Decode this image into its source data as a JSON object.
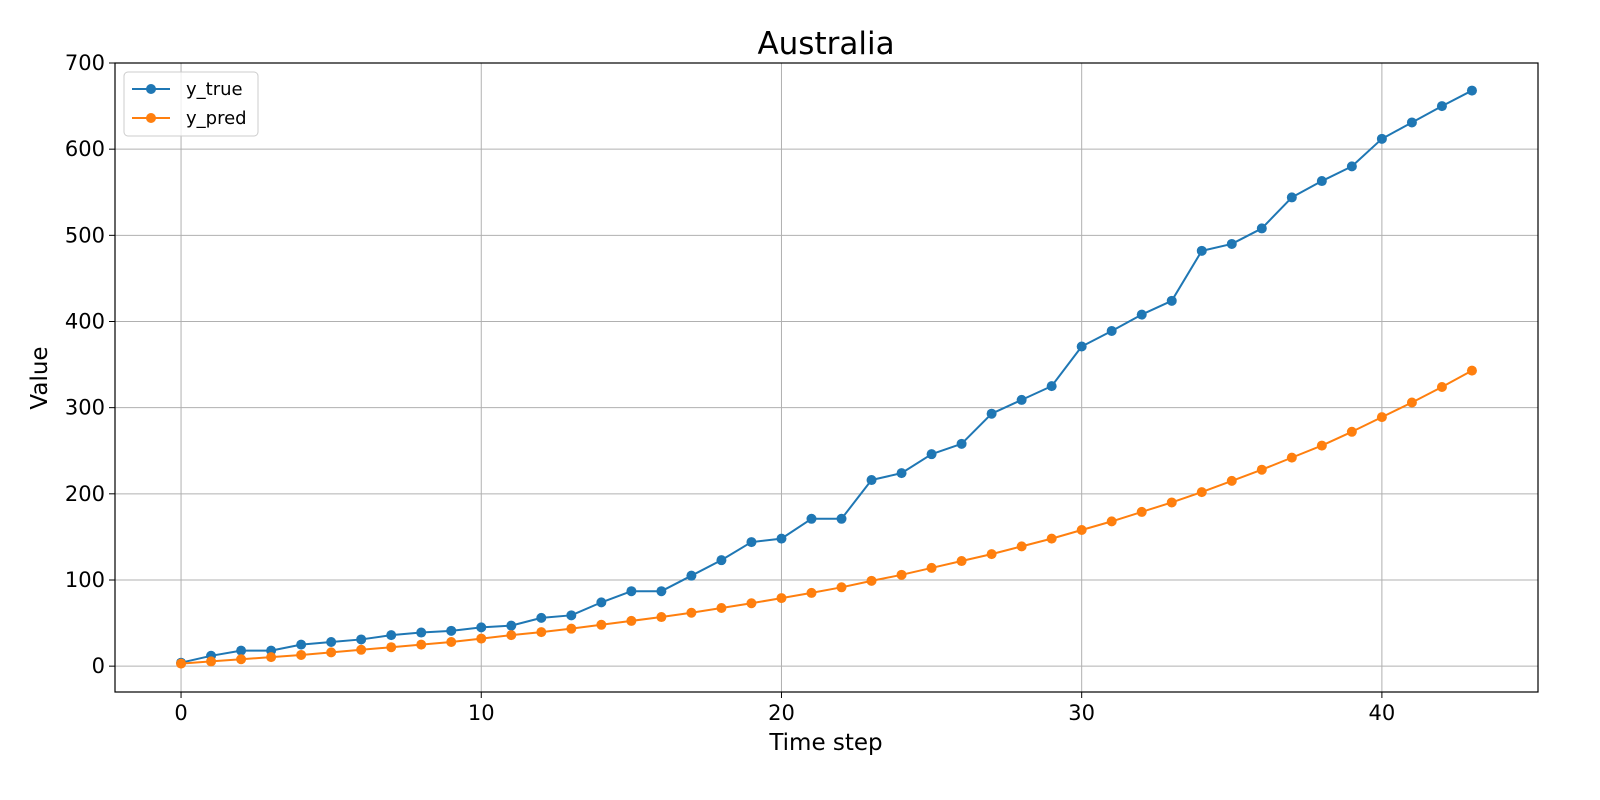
{
  "chart_data": {
    "type": "line",
    "title": "Australia",
    "xlabel": "Time step",
    "ylabel": "Value",
    "xlim": [
      -2.2,
      45.2
    ],
    "ylim": [
      -30,
      700
    ],
    "xticks": [
      0,
      10,
      20,
      30,
      40
    ],
    "yticks": [
      0,
      100,
      200,
      300,
      400,
      500,
      600,
      700
    ],
    "grid": true,
    "legend_position": "top-left",
    "x": [
      0,
      1,
      2,
      3,
      4,
      5,
      6,
      7,
      8,
      9,
      10,
      11,
      12,
      13,
      14,
      15,
      16,
      17,
      18,
      19,
      20,
      21,
      22,
      23,
      24,
      25,
      26,
      27,
      28,
      29,
      30,
      31,
      32,
      33,
      34,
      35,
      36,
      37,
      38,
      39,
      40,
      41,
      42,
      43
    ],
    "series": [
      {
        "name": "y_true",
        "color": "#1f77b4",
        "values": [
          4,
          12,
          18,
          18,
          25,
          28,
          31,
          36,
          39,
          41,
          45,
          47,
          56,
          59,
          74,
          87,
          87,
          105,
          123,
          144,
          148,
          171,
          171,
          216,
          224,
          246,
          258,
          293,
          309,
          325,
          371,
          389,
          408,
          424,
          482,
          490,
          508,
          544,
          563,
          580,
          612,
          631,
          650,
          668
        ]
      },
      {
        "name": "y_pred",
        "color": "#ff7f0e",
        "values": [
          3,
          5.5,
          8,
          10.5,
          13,
          16,
          19,
          22,
          25,
          28,
          32,
          36,
          39.5,
          43.5,
          48,
          52.5,
          57,
          62,
          67.5,
          73,
          79,
          85,
          91.5,
          99,
          106,
          114,
          122,
          130,
          139,
          148,
          158,
          168,
          179,
          190,
          202,
          215,
          228,
          242,
          256,
          272,
          289,
          306,
          324,
          343
        ]
      }
    ]
  }
}
